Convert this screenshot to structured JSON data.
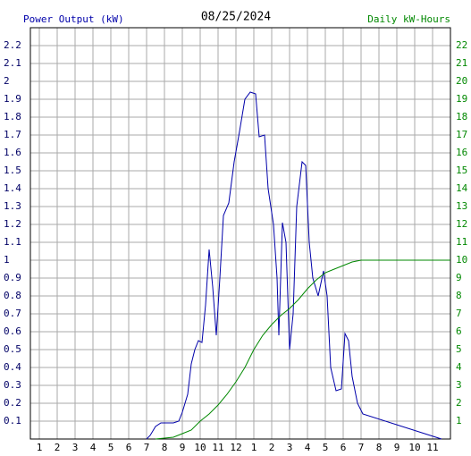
{
  "chart_data": {
    "type": "line",
    "title": "08/25/2024",
    "series": [
      {
        "name": "Power Output (kW)",
        "color": "#0000aa",
        "axis": "y",
        "x": [
          7.0,
          7.2,
          7.5,
          7.8,
          8.5,
          8.8,
          9.0,
          9.3,
          9.5,
          9.7,
          9.9,
          10.1,
          10.3,
          10.5,
          10.7,
          10.9,
          11.1,
          11.3,
          11.6,
          11.9,
          12.2,
          12.5,
          12.8,
          13.1,
          13.3,
          13.6,
          13.8,
          14.1,
          14.3,
          14.4,
          14.6,
          14.8,
          15.0,
          15.2,
          15.4,
          15.7,
          15.9,
          16.1,
          16.3,
          16.6,
          16.9,
          17.1,
          17.3,
          17.6,
          17.9,
          18.1,
          18.3,
          18.5,
          18.8,
          19.1,
          23.5
        ],
        "values": [
          0,
          0.02,
          0.07,
          0.09,
          0.09,
          0.1,
          0.15,
          0.25,
          0.42,
          0.5,
          0.55,
          0.54,
          0.75,
          1.06,
          0.85,
          0.58,
          0.9,
          1.25,
          1.32,
          1.55,
          1.72,
          1.9,
          1.94,
          1.93,
          1.69,
          1.7,
          1.4,
          1.2,
          0.9,
          0.58,
          1.21,
          1.1,
          0.5,
          0.7,
          1.3,
          1.55,
          1.53,
          1.1,
          0.9,
          0.8,
          0.94,
          0.8,
          0.4,
          0.27,
          0.28,
          0.59,
          0.55,
          0.35,
          0.2,
          0.14,
          0
        ]
      },
      {
        "name": "Daily kW-Hours",
        "color": "#008800",
        "axis": "y2",
        "x": [
          7.5,
          8.5,
          9.0,
          9.5,
          10.0,
          10.5,
          11.0,
          11.5,
          12.0,
          12.5,
          13.0,
          13.5,
          14.0,
          14.5,
          15.0,
          15.5,
          16.0,
          16.5,
          17.0,
          17.5,
          18.0,
          18.5,
          19.0,
          24.0
        ],
        "values": [
          0,
          0.1,
          0.3,
          0.5,
          1.0,
          1.4,
          1.9,
          2.5,
          3.2,
          4.0,
          5.0,
          5.8,
          6.4,
          6.9,
          7.3,
          7.8,
          8.4,
          8.9,
          9.3,
          9.5,
          9.7,
          9.9,
          10.0,
          10.0
        ]
      }
    ],
    "xlim": [
      0.5,
      24
    ],
    "xticks": [
      1,
      2,
      3,
      4,
      5,
      6,
      7,
      8,
      9,
      10,
      11,
      12,
      {
        "value": 13,
        "label": "1"
      },
      {
        "value": 14,
        "label": "2"
      },
      {
        "value": 15,
        "label": "3"
      },
      {
        "value": 16,
        "label": "4"
      },
      {
        "value": 17,
        "label": "5"
      },
      {
        "value": 18,
        "label": "6"
      },
      {
        "value": 19,
        "label": "7"
      },
      {
        "value": 20,
        "label": "8"
      },
      {
        "value": 21,
        "label": "9"
      },
      {
        "value": 22,
        "label": "10"
      },
      {
        "value": 23,
        "label": "11"
      }
    ],
    "ylim": [
      0,
      2.3
    ],
    "yticks": [
      0.1,
      0.2,
      0.3,
      0.4,
      0.5,
      0.6,
      0.7,
      0.8,
      0.9,
      1.0,
      1.1,
      1.2,
      1.3,
      1.4,
      1.5,
      1.6,
      1.7,
      1.8,
      1.9,
      2.0,
      2.1,
      2.2
    ],
    "y2lim": [
      0,
      23
    ],
    "y2ticks": [
      1,
      2,
      3,
      4,
      5,
      6,
      7,
      8,
      9,
      10,
      11,
      12,
      13,
      14,
      15,
      16,
      17,
      18,
      19,
      20,
      21,
      22
    ],
    "grid": true
  }
}
